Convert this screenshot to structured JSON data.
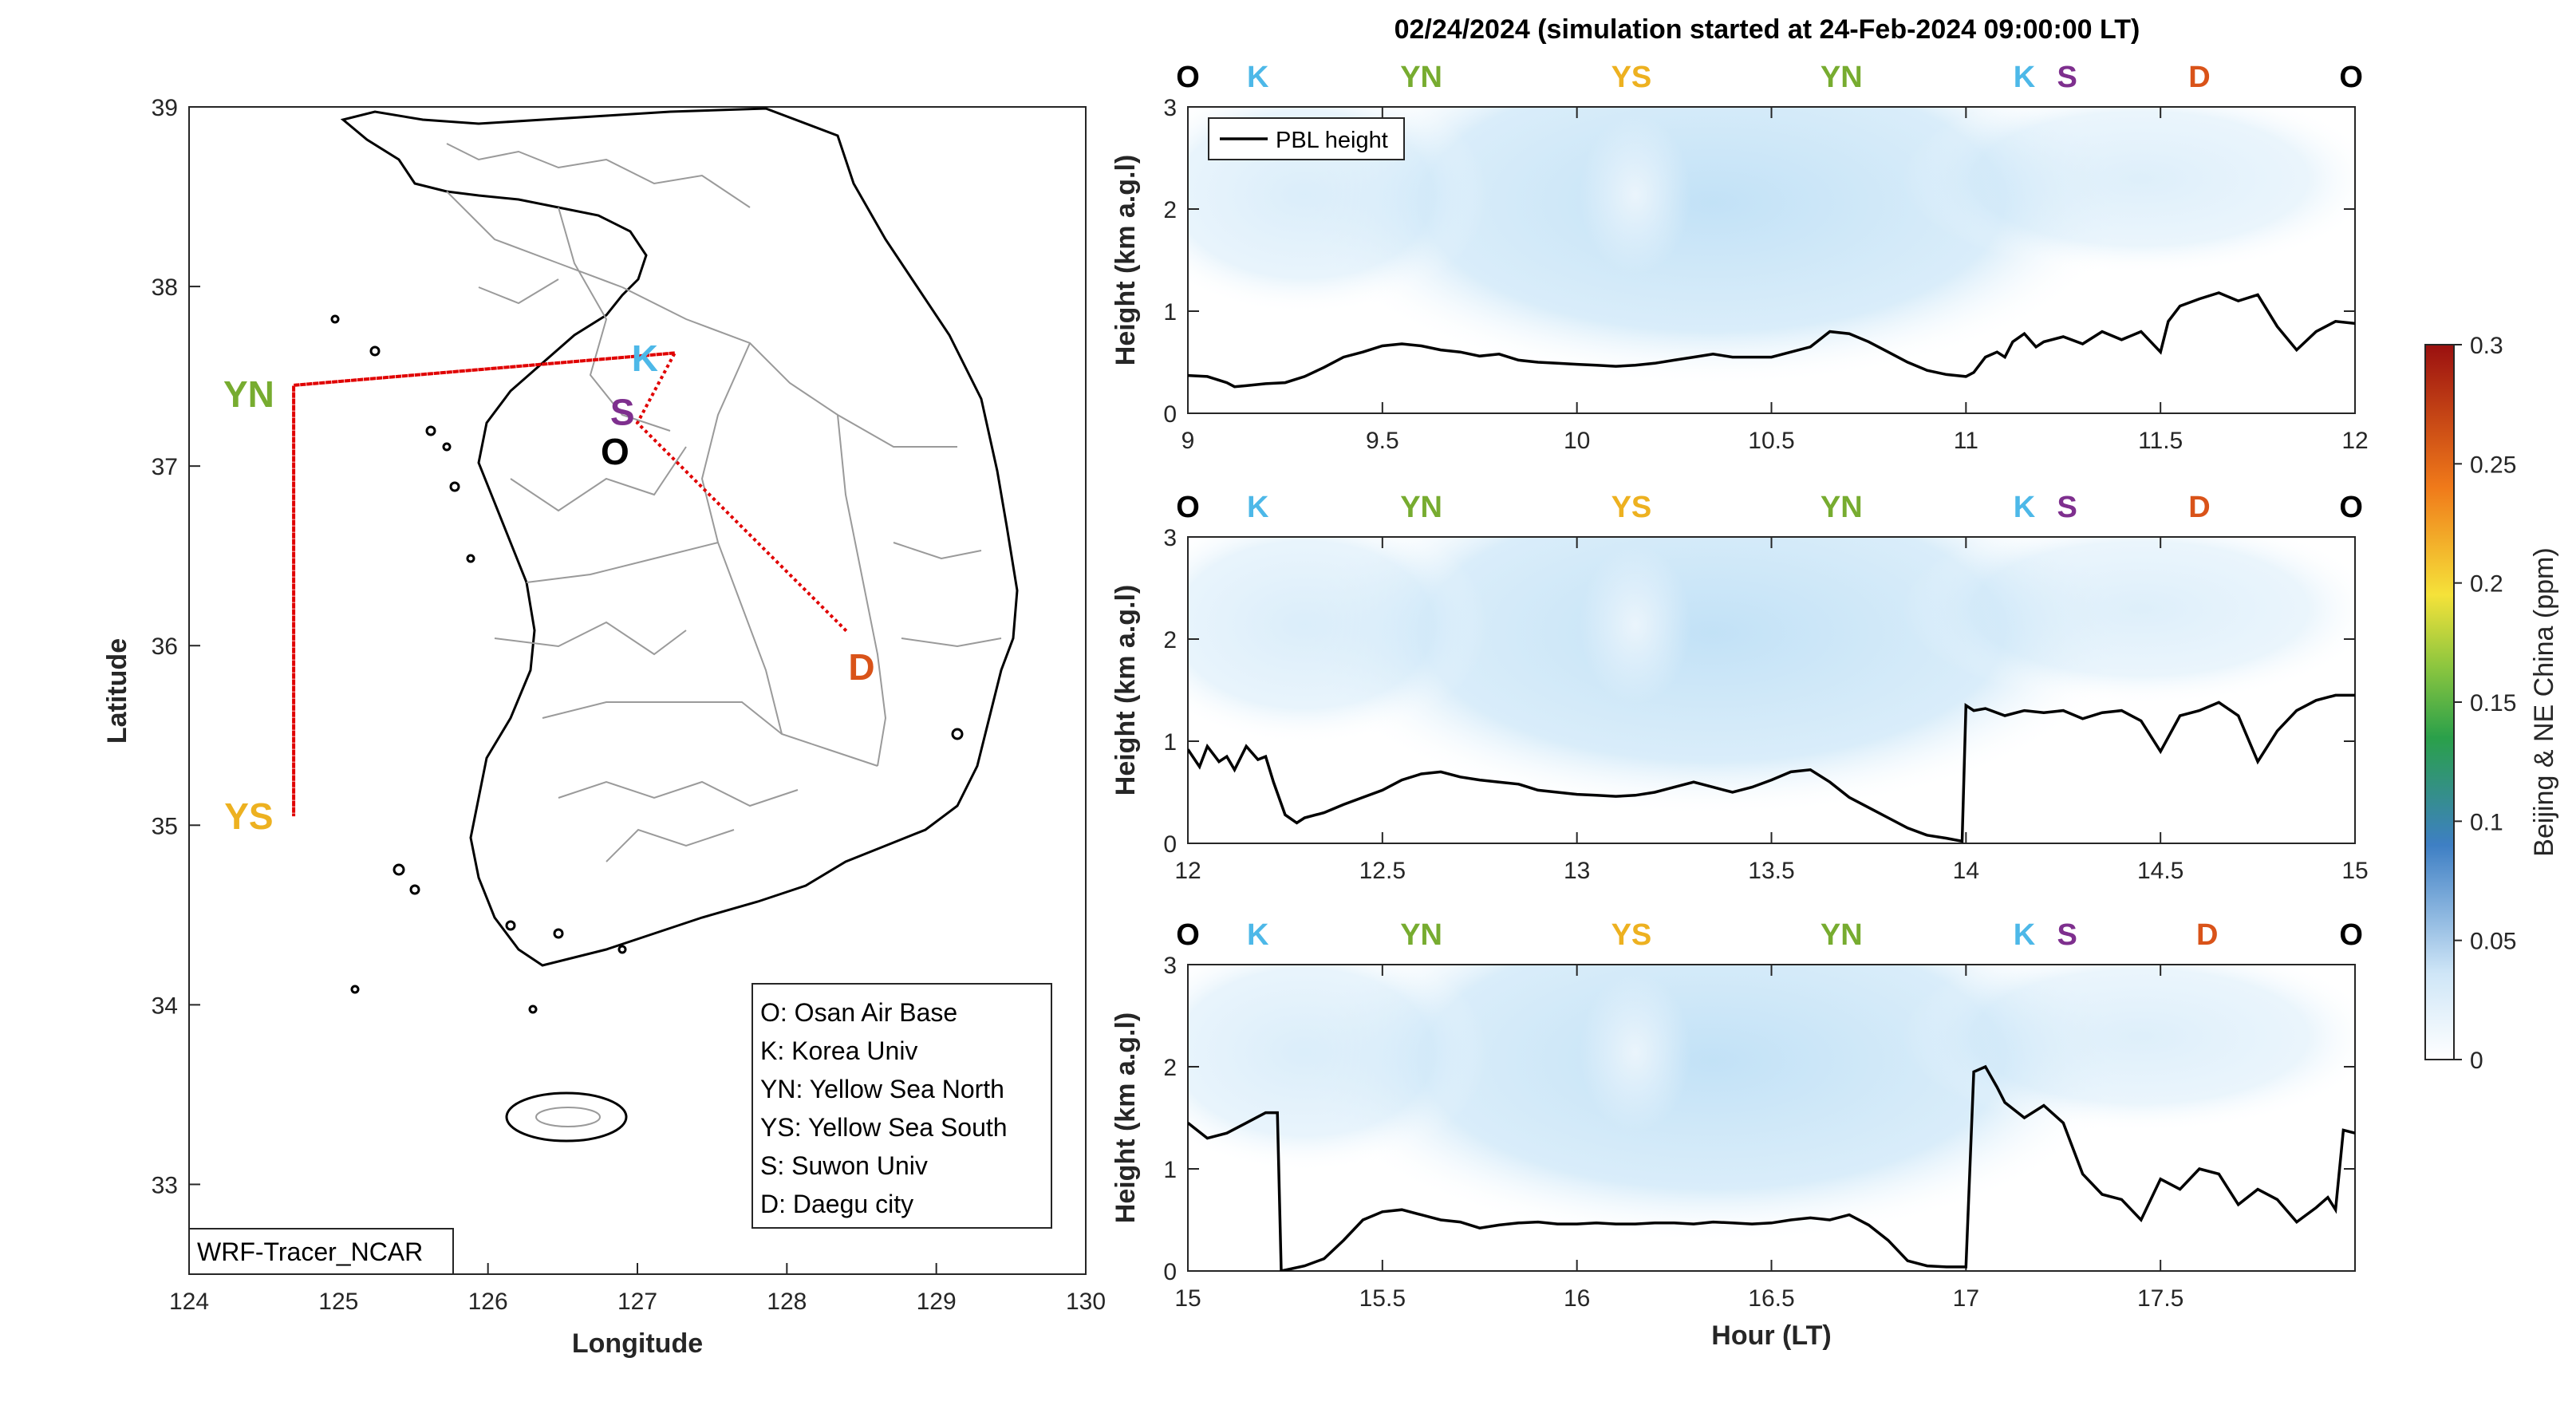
{
  "title": "02/24/2024 (simulation started at 24-Feb-2024 09:00:00 LT)",
  "colors": {
    "O": "#000000",
    "K": "#4db8e8",
    "YN": "#77ac30",
    "YS": "#edb120",
    "S": "#7e2f8e",
    "D": "#d95319",
    "route": "#e00000",
    "pbl": "#000000"
  },
  "map": {
    "xlabel": "Longitude",
    "ylabel": "Latitude",
    "xticks": [
      "124",
      "125",
      "126",
      "127",
      "128",
      "129",
      "130"
    ],
    "yticks": [
      "33",
      "34",
      "35",
      "36",
      "37",
      "38",
      "39"
    ],
    "xlim": [
      124,
      130
    ],
    "ylim": [
      32.5,
      39
    ],
    "sites": [
      {
        "code": "K",
        "lon": 127.05,
        "lat": 37.6
      },
      {
        "code": "S",
        "lon": 126.9,
        "lat": 37.3
      },
      {
        "code": "O",
        "lon": 126.85,
        "lat": 37.08
      },
      {
        "code": "YN",
        "lon": 124.4,
        "lat": 37.4
      },
      {
        "code": "YS",
        "lon": 124.4,
        "lat": 35.05
      },
      {
        "code": "D",
        "lon": 128.5,
        "lat": 35.88
      }
    ],
    "route": [
      [
        127.25,
        37.63
      ],
      [
        126.55,
        37.58
      ],
      [
        124.7,
        37.45
      ],
      [
        124.7,
        35.05
      ],
      [
        124.7,
        37.45
      ],
      [
        126.55,
        37.58
      ],
      [
        127.25,
        37.63
      ],
      [
        127.0,
        37.24
      ],
      [
        128.4,
        36.08
      ]
    ],
    "legend": [
      "O: Osan Air Base",
      "K: Korea Univ",
      "YN: Yellow Sea North",
      "YS: Yellow Sea South",
      "S: Suwon Univ",
      "D: Daegu city"
    ],
    "model_label": "WRF-Tracer_NCAR"
  },
  "chart_data": [
    {
      "type": "line",
      "ylabel": "Height (km a.g.l)",
      "xlim": [
        9,
        12
      ],
      "ylim": [
        0,
        3
      ],
      "xticks": [
        "9",
        "9.5",
        "10",
        "10.5",
        "11",
        "11.5",
        "12"
      ],
      "yticks": [
        "0",
        "1",
        "2",
        "3"
      ],
      "legend": "PBL height",
      "site_labels": [
        {
          "code": "O",
          "x": 9.0
        },
        {
          "code": "K",
          "x": 9.18
        },
        {
          "code": "YN",
          "x": 9.6
        },
        {
          "code": "YS",
          "x": 10.14
        },
        {
          "code": "YN",
          "x": 10.68
        },
        {
          "code": "K",
          "x": 11.15
        },
        {
          "code": "S",
          "x": 11.26
        },
        {
          "code": "D",
          "x": 11.6
        },
        {
          "code": "O",
          "x": 11.99
        }
      ],
      "series": [
        {
          "name": "PBL height",
          "x": [
            9.0,
            9.05,
            9.1,
            9.12,
            9.15,
            9.2,
            9.25,
            9.3,
            9.35,
            9.4,
            9.45,
            9.5,
            9.55,
            9.6,
            9.65,
            9.7,
            9.75,
            9.8,
            9.85,
            9.9,
            9.95,
            10.0,
            10.05,
            10.1,
            10.15,
            10.2,
            10.25,
            10.3,
            10.35,
            10.4,
            10.45,
            10.5,
            10.55,
            10.6,
            10.65,
            10.7,
            10.75,
            10.8,
            10.85,
            10.9,
            10.95,
            11.0,
            11.02,
            11.05,
            11.08,
            11.1,
            11.12,
            11.15,
            11.18,
            11.2,
            11.25,
            11.3,
            11.35,
            11.4,
            11.45,
            11.5,
            11.52,
            11.55,
            11.6,
            11.65,
            11.7,
            11.75,
            11.8,
            11.85,
            11.9,
            11.95,
            12.0
          ],
          "y": [
            0.37,
            0.36,
            0.3,
            0.26,
            0.27,
            0.29,
            0.3,
            0.36,
            0.45,
            0.55,
            0.6,
            0.66,
            0.68,
            0.66,
            0.62,
            0.6,
            0.56,
            0.58,
            0.52,
            0.5,
            0.49,
            0.48,
            0.47,
            0.46,
            0.47,
            0.49,
            0.52,
            0.55,
            0.58,
            0.55,
            0.55,
            0.55,
            0.6,
            0.65,
            0.8,
            0.78,
            0.7,
            0.6,
            0.5,
            0.42,
            0.38,
            0.36,
            0.4,
            0.55,
            0.6,
            0.55,
            0.7,
            0.78,
            0.65,
            0.7,
            0.75,
            0.68,
            0.8,
            0.72,
            0.8,
            0.6,
            0.9,
            1.05,
            1.12,
            1.18,
            1.1,
            1.16,
            0.85,
            0.62,
            0.8,
            0.9,
            0.88
          ]
        }
      ]
    },
    {
      "type": "line",
      "ylabel": "Height (km a.g.l)",
      "xlim": [
        12,
        15
      ],
      "ylim": [
        0,
        3
      ],
      "xticks": [
        "12",
        "12.5",
        "13",
        "13.5",
        "14",
        "14.5",
        "15"
      ],
      "yticks": [
        "0",
        "1",
        "2",
        "3"
      ],
      "legend": "",
      "site_labels": [
        {
          "code": "O",
          "x": 12.0
        },
        {
          "code": "K",
          "x": 12.18
        },
        {
          "code": "YN",
          "x": 12.6
        },
        {
          "code": "YS",
          "x": 13.14
        },
        {
          "code": "YN",
          "x": 13.68
        },
        {
          "code": "K",
          "x": 14.15
        },
        {
          "code": "S",
          "x": 14.26
        },
        {
          "code": "D",
          "x": 14.6
        },
        {
          "code": "O",
          "x": 14.99
        }
      ],
      "series": [
        {
          "name": "PBL height",
          "x": [
            12.0,
            12.03,
            12.05,
            12.08,
            12.1,
            12.12,
            12.15,
            12.18,
            12.2,
            12.22,
            12.25,
            12.28,
            12.3,
            12.35,
            12.4,
            12.45,
            12.5,
            12.55,
            12.6,
            12.65,
            12.7,
            12.75,
            12.8,
            12.85,
            12.9,
            12.95,
            13.0,
            13.05,
            13.1,
            13.15,
            13.2,
            13.25,
            13.3,
            13.35,
            13.4,
            13.45,
            13.5,
            13.55,
            13.6,
            13.65,
            13.7,
            13.75,
            13.8,
            13.85,
            13.9,
            13.95,
            13.99,
            14.0,
            14.02,
            14.05,
            14.1,
            14.15,
            14.2,
            14.25,
            14.3,
            14.35,
            14.4,
            14.45,
            14.5,
            14.55,
            14.6,
            14.65,
            14.7,
            14.75,
            14.8,
            14.85,
            14.9,
            14.95,
            15.0
          ],
          "y": [
            0.92,
            0.75,
            0.95,
            0.8,
            0.85,
            0.72,
            0.95,
            0.82,
            0.85,
            0.6,
            0.28,
            0.2,
            0.25,
            0.3,
            0.38,
            0.45,
            0.52,
            0.62,
            0.68,
            0.7,
            0.65,
            0.62,
            0.6,
            0.58,
            0.52,
            0.5,
            0.48,
            0.47,
            0.46,
            0.47,
            0.5,
            0.55,
            0.6,
            0.55,
            0.5,
            0.55,
            0.62,
            0.7,
            0.72,
            0.6,
            0.45,
            0.35,
            0.25,
            0.15,
            0.08,
            0.05,
            0.02,
            1.35,
            1.3,
            1.32,
            1.25,
            1.3,
            1.28,
            1.3,
            1.22,
            1.28,
            1.3,
            1.2,
            0.9,
            1.25,
            1.3,
            1.38,
            1.25,
            0.8,
            1.1,
            1.3,
            1.4,
            1.45,
            1.45
          ]
        }
      ]
    },
    {
      "type": "line",
      "ylabel": "Height (km a.g.l)",
      "xlabel": "Hour (LT)",
      "xlim": [
        15,
        18
      ],
      "ylim": [
        0,
        3
      ],
      "xticks": [
        "15",
        "15.5",
        "16",
        "16.5",
        "17",
        "17.5"
      ],
      "yticks": [
        "0",
        "1",
        "2",
        "3"
      ],
      "legend": "",
      "site_labels": [
        {
          "code": "O",
          "x": 15.0
        },
        {
          "code": "K",
          "x": 15.18
        },
        {
          "code": "YN",
          "x": 15.6
        },
        {
          "code": "YS",
          "x": 16.14
        },
        {
          "code": "YN",
          "x": 16.68
        },
        {
          "code": "K",
          "x": 17.15
        },
        {
          "code": "S",
          "x": 17.26
        },
        {
          "code": "D",
          "x": 17.62
        },
        {
          "code": "O",
          "x": 17.99
        }
      ],
      "series": [
        {
          "name": "PBL height",
          "x": [
            15.0,
            15.05,
            15.1,
            15.15,
            15.2,
            15.23,
            15.24,
            15.3,
            15.35,
            15.4,
            15.45,
            15.5,
            15.55,
            15.6,
            15.65,
            15.7,
            15.75,
            15.8,
            15.85,
            15.9,
            15.95,
            16.0,
            16.05,
            16.1,
            16.15,
            16.2,
            16.25,
            16.3,
            16.35,
            16.4,
            16.45,
            16.5,
            16.55,
            16.6,
            16.65,
            16.7,
            16.75,
            16.8,
            16.85,
            16.9,
            16.95,
            17.0,
            17.02,
            17.05,
            17.08,
            17.1,
            17.15,
            17.2,
            17.25,
            17.3,
            17.35,
            17.4,
            17.45,
            17.5,
            17.55,
            17.6,
            17.65,
            17.7,
            17.75,
            17.8,
            17.85,
            17.9,
            17.93,
            17.95,
            17.97,
            18.0
          ],
          "y": [
            1.45,
            1.3,
            1.35,
            1.45,
            1.55,
            1.55,
            0.0,
            0.05,
            0.12,
            0.3,
            0.5,
            0.58,
            0.6,
            0.55,
            0.5,
            0.48,
            0.42,
            0.45,
            0.47,
            0.48,
            0.46,
            0.46,
            0.47,
            0.46,
            0.46,
            0.47,
            0.47,
            0.46,
            0.48,
            0.47,
            0.46,
            0.47,
            0.5,
            0.52,
            0.5,
            0.55,
            0.45,
            0.3,
            0.1,
            0.05,
            0.04,
            0.04,
            1.95,
            2.0,
            1.8,
            1.65,
            1.5,
            1.62,
            1.45,
            0.95,
            0.75,
            0.7,
            0.5,
            0.9,
            0.8,
            1.0,
            0.95,
            0.65,
            0.8,
            0.7,
            0.48,
            0.62,
            0.72,
            0.6,
            1.38,
            1.35
          ]
        }
      ]
    }
  ],
  "colorbar": {
    "label": "Beijing & NE China (ppm)",
    "ticks": [
      "0",
      "0.05",
      "0.1",
      "0.15",
      "0.2",
      "0.25",
      "0.3"
    ],
    "range": [
      0,
      0.3
    ]
  }
}
